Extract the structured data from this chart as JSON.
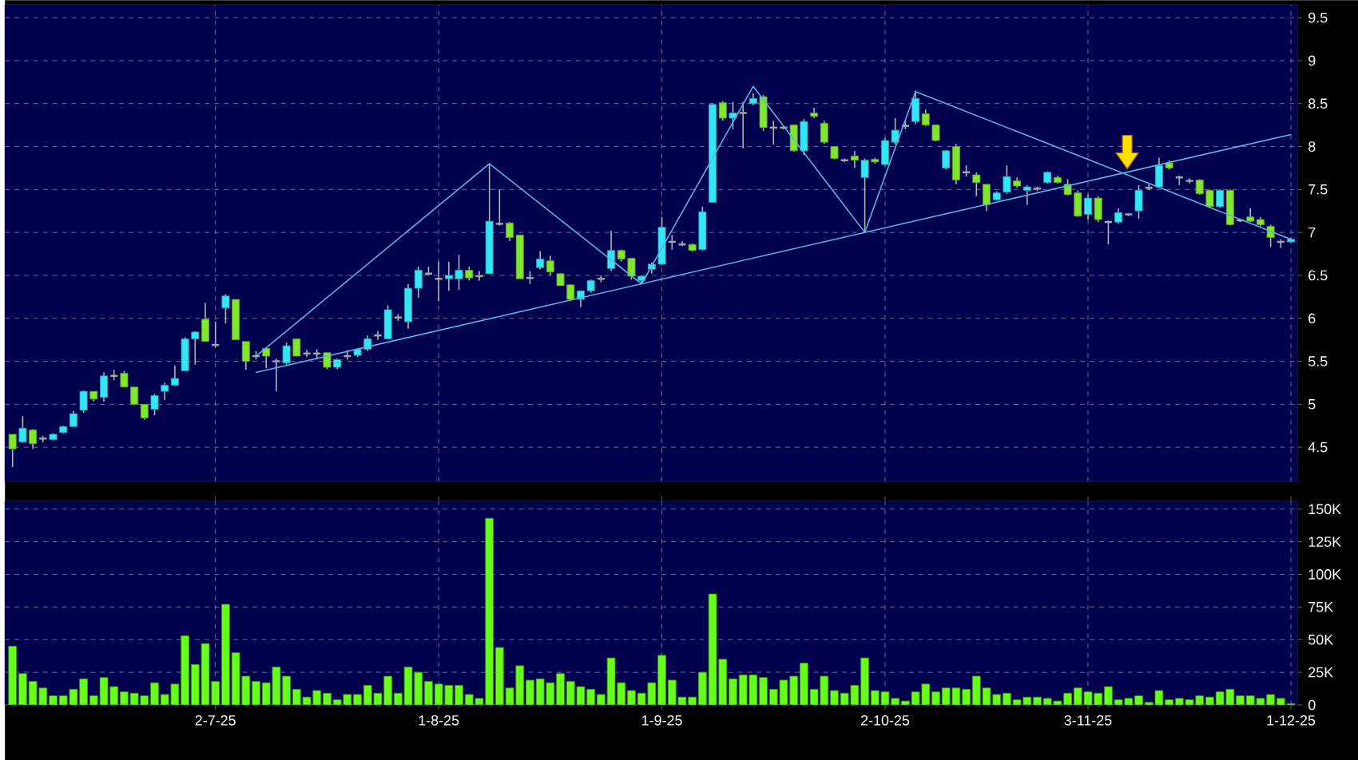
{
  "chart_data": [
    {
      "type": "candlestick",
      "categories": [
        null,
        null,
        null,
        null,
        null,
        null,
        null,
        null,
        null,
        null,
        null,
        null,
        null,
        null,
        null,
        null,
        null,
        null,
        null,
        null,
        null,
        null,
        null,
        null,
        null,
        null,
        null,
        null,
        null,
        null,
        null,
        null,
        null,
        null,
        null,
        null,
        null,
        null,
        null,
        null,
        null,
        null,
        null,
        null,
        null,
        null,
        null,
        null,
        null,
        null,
        null,
        null,
        null,
        null,
        null,
        null,
        null,
        null,
        null,
        null,
        null,
        null,
        null,
        null,
        null,
        null,
        null,
        null,
        null,
        null,
        null,
        null,
        null,
        null,
        null,
        null,
        null,
        null,
        null,
        null,
        null,
        null,
        null,
        null,
        null,
        null,
        null,
        null,
        null,
        null,
        null,
        null,
        null,
        null,
        null,
        null,
        null,
        null,
        null,
        null,
        null,
        null,
        null,
        null,
        null,
        null,
        null,
        null,
        null,
        null,
        null,
        null,
        null,
        null,
        null,
        null,
        null,
        null,
        null,
        null,
        null,
        null,
        null,
        null,
        null,
        null,
        null
      ],
      "ohlc": [
        [
          4.65,
          4.65,
          4.27,
          4.48
        ],
        [
          4.56,
          4.86,
          4.55,
          4.72
        ],
        [
          4.7,
          4.71,
          4.48,
          4.54
        ],
        [
          4.6,
          4.63,
          4.56,
          4.6
        ],
        [
          4.59,
          4.66,
          4.58,
          4.65
        ],
        [
          4.67,
          4.75,
          4.66,
          4.74
        ],
        [
          4.74,
          4.92,
          4.74,
          4.89
        ],
        [
          4.93,
          5.16,
          4.9,
          5.15
        ],
        [
          5.15,
          5.15,
          5.03,
          5.06
        ],
        [
          5.08,
          5.37,
          5.03,
          5.33
        ],
        [
          5.33,
          5.4,
          5.28,
          5.33
        ],
        [
          5.36,
          5.39,
          5.2,
          5.2
        ],
        [
          5.2,
          5.2,
          4.99,
          5.0
        ],
        [
          5.0,
          5.0,
          4.82,
          4.84
        ],
        [
          4.94,
          5.12,
          4.87,
          5.1
        ],
        [
          5.15,
          5.25,
          5.05,
          5.22
        ],
        [
          5.22,
          5.45,
          5.22,
          5.3
        ],
        [
          5.39,
          5.78,
          5.39,
          5.76
        ],
        [
          5.76,
          5.85,
          5.46,
          5.84
        ],
        [
          5.99,
          6.18,
          5.73,
          5.73
        ],
        [
          5.69,
          5.96,
          5.66,
          5.69
        ],
        [
          6.12,
          6.28,
          5.94,
          6.26
        ],
        [
          6.22,
          6.22,
          5.75,
          5.75
        ],
        [
          5.73,
          5.73,
          5.4,
          5.5
        ],
        [
          5.56,
          5.62,
          5.52,
          5.56
        ],
        [
          5.65,
          5.66,
          5.42,
          5.56
        ],
        [
          5.5,
          5.53,
          5.15,
          5.5
        ],
        [
          5.48,
          5.72,
          5.46,
          5.68
        ],
        [
          5.76,
          5.76,
          5.56,
          5.56
        ],
        [
          5.59,
          5.63,
          5.55,
          5.59
        ],
        [
          5.59,
          5.64,
          5.52,
          5.59
        ],
        [
          5.6,
          5.6,
          5.41,
          5.43
        ],
        [
          5.43,
          5.53,
          5.41,
          5.52
        ],
        [
          5.56,
          5.63,
          5.52,
          5.56
        ],
        [
          5.57,
          5.65,
          5.55,
          5.64
        ],
        [
          5.64,
          5.8,
          5.62,
          5.76
        ],
        [
          5.8,
          5.85,
          5.75,
          5.8
        ],
        [
          5.76,
          6.15,
          5.76,
          6.1
        ],
        [
          6.01,
          6.05,
          5.97,
          6.01
        ],
        [
          5.96,
          6.4,
          5.88,
          6.35
        ],
        [
          6.35,
          6.6,
          6.24,
          6.56
        ],
        [
          6.52,
          6.6,
          6.5,
          6.52
        ],
        [
          6.46,
          6.66,
          6.2,
          6.46
        ],
        [
          6.46,
          6.66,
          6.32,
          6.5
        ],
        [
          6.46,
          6.74,
          6.33,
          6.56
        ],
        [
          6.56,
          6.6,
          6.44,
          6.47
        ],
        [
          6.49,
          6.55,
          6.44,
          6.49
        ],
        [
          6.52,
          7.8,
          6.52,
          7.13
        ],
        [
          7.1,
          7.5,
          7.08,
          7.1
        ],
        [
          7.11,
          7.12,
          6.9,
          6.94
        ],
        [
          6.97,
          6.97,
          6.46,
          6.46
        ],
        [
          6.47,
          6.55,
          6.4,
          6.47
        ],
        [
          6.59,
          6.78,
          6.57,
          6.69
        ],
        [
          6.67,
          6.73,
          6.5,
          6.54
        ],
        [
          6.52,
          6.52,
          6.38,
          6.38
        ],
        [
          6.39,
          6.39,
          6.2,
          6.22
        ],
        [
          6.22,
          6.32,
          6.13,
          6.32
        ],
        [
          6.32,
          6.45,
          6.3,
          6.44
        ],
        [
          6.46,
          6.5,
          6.42,
          6.46
        ],
        [
          6.58,
          7.02,
          6.55,
          6.79
        ],
        [
          6.79,
          6.8,
          6.66,
          6.69
        ],
        [
          6.7,
          6.7,
          6.45,
          6.49
        ],
        [
          6.44,
          6.5,
          6.4,
          6.49
        ],
        [
          6.57,
          6.65,
          6.52,
          6.63
        ],
        [
          6.63,
          7.18,
          6.62,
          7.06
        ],
        [
          6.89,
          6.97,
          6.8,
          6.89
        ],
        [
          6.86,
          6.9,
          6.84,
          6.86
        ],
        [
          6.86,
          6.87,
          6.78,
          6.79
        ],
        [
          6.8,
          7.3,
          6.79,
          7.24
        ],
        [
          7.35,
          8.5,
          7.35,
          8.49
        ],
        [
          8.51,
          8.53,
          8.3,
          8.33
        ],
        [
          8.33,
          8.52,
          8.2,
          8.39
        ],
        [
          8.39,
          8.52,
          7.98,
          8.39
        ],
        [
          8.5,
          8.62,
          8.48,
          8.56
        ],
        [
          8.58,
          8.6,
          8.18,
          8.22
        ],
        [
          8.22,
          8.3,
          8.02,
          8.22
        ],
        [
          8.22,
          8.24,
          8.2,
          8.22
        ],
        [
          8.25,
          8.25,
          7.94,
          7.95
        ],
        [
          7.95,
          8.32,
          7.9,
          8.29
        ],
        [
          8.39,
          8.45,
          8.33,
          8.35
        ],
        [
          8.27,
          8.3,
          8.03,
          8.05
        ],
        [
          8.0,
          8.0,
          7.85,
          7.86
        ],
        [
          7.84,
          7.86,
          7.82,
          7.84
        ],
        [
          7.89,
          7.95,
          7.75,
          7.84
        ],
        [
          7.64,
          7.86,
          7.0,
          7.84
        ],
        [
          7.85,
          7.87,
          7.8,
          7.82
        ],
        [
          7.79,
          8.1,
          7.78,
          8.07
        ],
        [
          8.05,
          8.33,
          8.02,
          8.19
        ],
        [
          8.24,
          8.3,
          8.2,
          8.24
        ],
        [
          8.29,
          8.65,
          8.26,
          8.56
        ],
        [
          8.38,
          8.43,
          8.24,
          8.25
        ],
        [
          8.25,
          8.25,
          8.06,
          8.07
        ],
        [
          7.75,
          7.96,
          7.73,
          7.95
        ],
        [
          8.0,
          8.03,
          7.56,
          7.61
        ],
        [
          7.7,
          7.78,
          7.65,
          7.7
        ],
        [
          7.67,
          7.7,
          7.42,
          7.58
        ],
        [
          7.56,
          7.56,
          7.25,
          7.32
        ],
        [
          7.38,
          7.48,
          7.37,
          7.46
        ],
        [
          7.47,
          7.78,
          7.45,
          7.65
        ],
        [
          7.6,
          7.64,
          7.52,
          7.54
        ],
        [
          7.49,
          7.55,
          7.32,
          7.53
        ],
        [
          7.51,
          7.53,
          7.48,
          7.51
        ],
        [
          7.58,
          7.71,
          7.57,
          7.7
        ],
        [
          7.64,
          7.66,
          7.57,
          7.58
        ],
        [
          7.56,
          7.62,
          7.43,
          7.44
        ],
        [
          7.46,
          7.49,
          7.18,
          7.19
        ],
        [
          7.21,
          7.44,
          7.15,
          7.4
        ],
        [
          7.4,
          7.42,
          7.12,
          7.15
        ],
        [
          7.12,
          7.14,
          6.86,
          7.12
        ],
        [
          7.12,
          7.28,
          7.1,
          7.23
        ],
        [
          7.21,
          7.22,
          7.19,
          7.21
        ],
        [
          7.25,
          7.55,
          7.16,
          7.49
        ],
        [
          7.52,
          7.56,
          7.49,
          7.52
        ],
        [
          7.53,
          7.87,
          7.52,
          7.78
        ],
        [
          7.81,
          7.84,
          7.73,
          7.75
        ],
        [
          7.64,
          7.66,
          7.55,
          7.64
        ],
        [
          7.6,
          7.63,
          7.57,
          7.6
        ],
        [
          7.61,
          7.62,
          7.44,
          7.45
        ],
        [
          7.49,
          7.5,
          7.28,
          7.3
        ],
        [
          7.3,
          7.5,
          7.29,
          7.49
        ],
        [
          7.49,
          7.5,
          7.08,
          7.09
        ],
        [
          7.14,
          7.16,
          7.12,
          7.14
        ],
        [
          7.18,
          7.28,
          7.12,
          7.13
        ],
        [
          7.15,
          7.18,
          7.07,
          7.09
        ],
        [
          7.07,
          7.09,
          6.83,
          6.94
        ],
        [
          6.89,
          6.92,
          6.82,
          6.89
        ],
        [
          6.89,
          6.94,
          6.88,
          6.92
        ]
      ],
      "colors": [
        "#80e62e",
        "#33e6f5",
        "#80e62e",
        "#a8a8a8",
        "#33e6f5",
        "#33e6f5",
        "#33e6f5",
        "#33e6f5",
        "#80e62e",
        "#33e6f5",
        "#a8a8a8",
        "#80e62e",
        "#80e62e",
        "#80e62e",
        "#33e6f5",
        "#33e6f5",
        "#33e6f5",
        "#33e6f5",
        "#33e6f5",
        "#80e62e",
        "#a8a8a8",
        "#33e6f5",
        "#80e62e",
        "#80e62e",
        "#a8a8a8",
        "#80e62e",
        "#a8a8a8",
        "#33e6f5",
        "#80e62e",
        "#a8a8a8",
        "#a8a8a8",
        "#80e62e",
        "#33e6f5",
        "#a8a8a8",
        "#33e6f5",
        "#33e6f5",
        "#a8a8a8",
        "#33e6f5",
        "#a8a8a8",
        "#33e6f5",
        "#33e6f5",
        "#a8a8a8",
        "#a8a8a8",
        "#33e6f5",
        "#33e6f5",
        "#80e62e",
        "#a8a8a8",
        "#33e6f5",
        "#a8a8a8",
        "#80e62e",
        "#80e62e",
        "#a8a8a8",
        "#33e6f5",
        "#80e62e",
        "#80e62e",
        "#80e62e",
        "#33e6f5",
        "#33e6f5",
        "#a8a8a8",
        "#33e6f5",
        "#80e62e",
        "#80e62e",
        "#33e6f5",
        "#33e6f5",
        "#33e6f5",
        "#a8a8a8",
        "#a8a8a8",
        "#80e62e",
        "#33e6f5",
        "#33e6f5",
        "#80e62e",
        "#33e6f5",
        "#a8a8a8",
        "#33e6f5",
        "#80e62e",
        "#a8a8a8",
        "#a8a8a8",
        "#80e62e",
        "#33e6f5",
        "#80e62e",
        "#80e62e",
        "#80e62e",
        "#a8a8a8",
        "#80e62e",
        "#33e6f5",
        "#80e62e",
        "#33e6f5",
        "#33e6f5",
        "#a8a8a8",
        "#33e6f5",
        "#80e62e",
        "#80e62e",
        "#33e6f5",
        "#80e62e",
        "#a8a8a8",
        "#80e62e",
        "#80e62e",
        "#33e6f5",
        "#33e6f5",
        "#80e62e",
        "#33e6f5",
        "#a8a8a8",
        "#33e6f5",
        "#80e62e",
        "#80e62e",
        "#80e62e",
        "#33e6f5",
        "#80e62e",
        "#a8a8a8",
        "#33e6f5",
        "#a8a8a8",
        "#33e6f5",
        "#a8a8a8",
        "#33e6f5",
        "#80e62e",
        "#a8a8a8",
        "#a8a8a8",
        "#80e62e",
        "#80e62e",
        "#33e6f5",
        "#80e62e",
        "#a8a8a8",
        "#80e62e",
        "#80e62e",
        "#80e62e",
        "#a8a8a8",
        "#33e6f5"
      ],
      "series": [
        {
          "type": "line",
          "color": "#5ab4e6",
          "values": [
            null,
            null,
            null,
            null,
            null,
            null,
            null,
            null,
            null,
            null,
            null,
            null,
            null,
            null,
            null,
            null,
            null,
            null,
            null,
            null,
            null,
            null,
            null,
            null,
            5.56,
            null,
            null,
            null,
            null,
            null,
            null,
            null,
            null,
            null,
            null,
            null,
            null,
            null,
            null,
            null,
            null,
            null,
            null,
            null,
            null,
            null,
            null,
            7.8,
            null,
            null,
            null,
            null,
            null,
            null,
            null,
            null,
            null,
            null,
            null,
            null,
            null,
            null,
            6.4,
            null,
            null,
            null,
            null,
            null,
            null,
            null,
            null,
            null,
            null,
            8.7,
            null,
            null,
            null,
            null,
            null,
            null,
            null,
            null,
            null,
            null,
            7.0,
            null,
            null,
            null,
            null,
            8.64,
            null,
            null,
            null,
            null,
            null,
            null,
            null,
            null,
            null,
            null,
            null,
            null,
            null,
            null,
            null,
            null,
            null,
            null,
            null,
            null,
            null,
            null,
            null,
            null,
            null,
            null,
            null,
            null,
            null,
            null,
            null,
            null,
            null,
            null,
            null,
            null,
            null
          ]
        },
        {
          "type": "line",
          "color": "#5ab4e6",
          "values": [
            null,
            null,
            null,
            null,
            null,
            null,
            null,
            null,
            null,
            null,
            null,
            null,
            null,
            null,
            null,
            null,
            null,
            null,
            null,
            null,
            null,
            null,
            null,
            null,
            5.37,
            null,
            null,
            null,
            null,
            null,
            null,
            null,
            null,
            null,
            null,
            null,
            null,
            null,
            null,
            null,
            null,
            null,
            null,
            null,
            null,
            null,
            null,
            null,
            null,
            null,
            null,
            null,
            null,
            null,
            null,
            null,
            null,
            null,
            null,
            null,
            null,
            null,
            null,
            null,
            null,
            null,
            null,
            null,
            null,
            null,
            null,
            null,
            null,
            null,
            null,
            null,
            null,
            null,
            null,
            null,
            null,
            null,
            null,
            null,
            null,
            null,
            null,
            null,
            null,
            null,
            null,
            null,
            null,
            null,
            null,
            null,
            null,
            null,
            null,
            null,
            null,
            null,
            null,
            null,
            null,
            null,
            null,
            null,
            null,
            null,
            null,
            null,
            null,
            null,
            null,
            null,
            null,
            null,
            null,
            null,
            null,
            null,
            null,
            null,
            null,
            null,
            8.14
          ]
        },
        {
          "type": "line",
          "color": "#5ab4e6",
          "values": [
            null,
            null,
            null,
            null,
            null,
            null,
            null,
            null,
            null,
            null,
            null,
            null,
            null,
            null,
            null,
            null,
            null,
            null,
            null,
            null,
            null,
            null,
            null,
            null,
            null,
            null,
            null,
            null,
            null,
            null,
            null,
            null,
            null,
            null,
            null,
            null,
            null,
            null,
            null,
            null,
            null,
            null,
            null,
            null,
            null,
            null,
            null,
            null,
            null,
            null,
            null,
            null,
            null,
            null,
            null,
            null,
            null,
            null,
            null,
            null,
            null,
            null,
            null,
            null,
            null,
            null,
            null,
            null,
            null,
            null,
            null,
            null,
            null,
            null,
            null,
            null,
            null,
            null,
            null,
            null,
            null,
            null,
            null,
            null,
            null,
            null,
            null,
            null,
            null,
            8.64,
            null,
            null,
            null,
            null,
            null,
            null,
            null,
            null,
            null,
            null,
            null,
            null,
            null,
            null,
            null,
            null,
            null,
            null,
            null,
            null,
            null,
            null,
            null,
            null,
            null,
            null,
            null,
            null,
            null,
            null,
            null,
            null,
            null,
            null,
            null,
            null,
            6.92
          ]
        }
      ],
      "ylim": [
        4.1,
        9.65
      ],
      "yticks": [
        4.5,
        5,
        5.5,
        6,
        6.5,
        7,
        7.5,
        8,
        8.5,
        9,
        9.5
      ],
      "grid": true,
      "tick_labels": "y"
    },
    {
      "type": "bar",
      "categories": [
        null,
        null,
        null,
        null,
        null,
        null,
        null,
        null,
        null,
        null,
        null,
        null,
        null,
        null,
        null,
        null,
        null,
        null,
        null,
        null,
        "2-7-25",
        null,
        null,
        null,
        null,
        null,
        null,
        null,
        null,
        null,
        null,
        null,
        null,
        null,
        null,
        null,
        null,
        null,
        null,
        null,
        null,
        null,
        "1-8-25",
        null,
        null,
        null,
        null,
        null,
        null,
        null,
        null,
        null,
        null,
        null,
        null,
        null,
        null,
        null,
        null,
        null,
        null,
        null,
        null,
        null,
        "1-9-25",
        null,
        null,
        null,
        null,
        null,
        null,
        null,
        null,
        null,
        null,
        null,
        null,
        null,
        null,
        null,
        null,
        null,
        null,
        null,
        null,
        null,
        "2-10-25",
        null,
        null,
        null,
        null,
        null,
        null,
        null,
        null,
        null,
        null,
        null,
        null,
        null,
        null,
        null,
        null,
        null,
        null,
        null,
        "3-11-25",
        null,
        null,
        null,
        null,
        null,
        null,
        null,
        null,
        null,
        null,
        null,
        null,
        null,
        null,
        null,
        null,
        null,
        null,
        null,
        "1-12-25"
      ],
      "values": [
        45000,
        24000,
        18000,
        13000,
        7000,
        7000,
        12000,
        20000,
        7000,
        21000,
        14000,
        10000,
        9000,
        7000,
        17000,
        8000,
        16000,
        53000,
        31000,
        47000,
        18000,
        77000,
        40000,
        22000,
        18000,
        17000,
        29000,
        22000,
        12000,
        6000,
        11000,
        9000,
        4000,
        8000,
        8000,
        15000,
        9000,
        22000,
        9000,
        29000,
        25000,
        18000,
        16000,
        15000,
        15000,
        8000,
        5000,
        143000,
        44000,
        13000,
        30000,
        19000,
        20000,
        17000,
        24000,
        18000,
        14000,
        12000,
        8000,
        36000,
        17000,
        11000,
        9000,
        17000,
        38000,
        19000,
        6000,
        6000,
        25000,
        85000,
        35000,
        20000,
        23000,
        23000,
        21000,
        12000,
        19000,
        22000,
        32000,
        12000,
        22000,
        11000,
        9000,
        15000,
        36000,
        11000,
        10000,
        5000,
        3000,
        10000,
        16000,
        10000,
        13000,
        13000,
        12000,
        22000,
        13000,
        8000,
        9000,
        4000,
        6000,
        6000,
        5000,
        3000,
        9000,
        13000,
        10000,
        9000,
        14000,
        4000,
        5000,
        7000,
        2000,
        11000,
        4000,
        5000,
        4000,
        7000,
        6000,
        10000,
        12000,
        7000,
        7000,
        5000,
        8000,
        5000,
        1000
      ],
      "color": "#66ff1a",
      "ylim": [
        0,
        156000
      ],
      "yticks": [
        0,
        {
          "value": 25000,
          "label": "25K"
        },
        {
          "value": 50000,
          "label": "50K"
        },
        {
          "value": 75000,
          "label": "75K"
        },
        {
          "value": 100000,
          "label": "100K"
        },
        {
          "value": 125000,
          "label": "125K"
        },
        {
          "value": 150000,
          "label": "150K"
        }
      ],
      "grid": true
    }
  ]
}
